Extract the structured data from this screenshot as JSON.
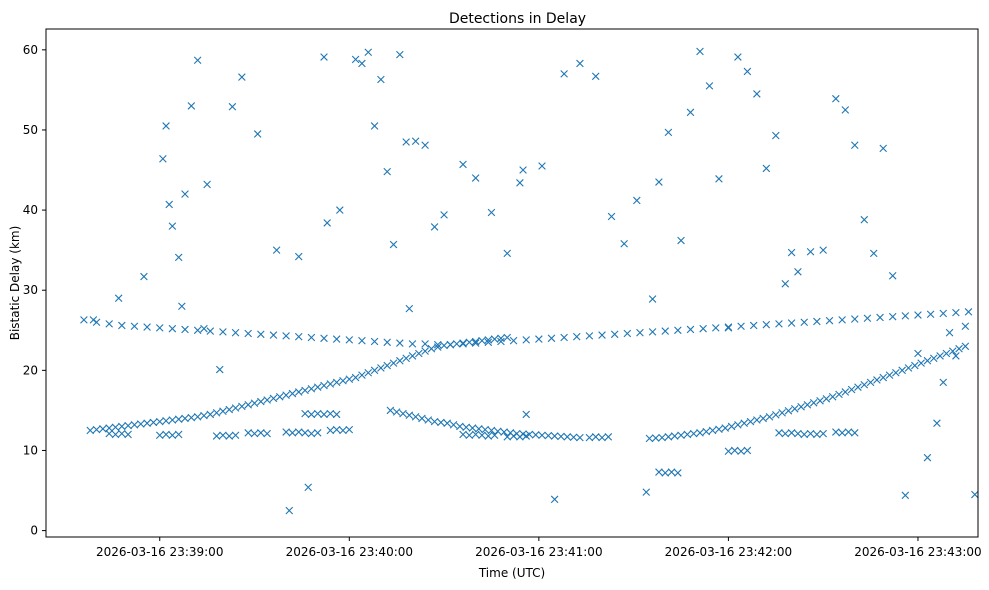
{
  "chart_data": {
    "type": "scatter",
    "title": "Detections in Delay",
    "xlabel": "Time (UTC)",
    "ylabel": "Bistatic Delay (km)",
    "marker": "x",
    "color": "#1f77b4",
    "x_unit": "seconds after 2026-03-16 23:38:00 UTC",
    "xlim": [
      24,
      319
    ],
    "ylim": [
      -0.8,
      62.6
    ],
    "xticks": [
      {
        "value": 60,
        "label": "2026-03-16 23:39:00"
      },
      {
        "value": 120,
        "label": "2026-03-16 23:40:00"
      },
      {
        "value": 180,
        "label": "2026-03-16 23:41:00"
      },
      {
        "value": 240,
        "label": "2026-03-16 23:42:00"
      },
      {
        "value": 300,
        "label": "2026-03-16 23:43:00"
      }
    ],
    "yticks": [
      {
        "value": 0,
        "label": "0"
      },
      {
        "value": 10,
        "label": "10"
      },
      {
        "value": 20,
        "label": "20"
      },
      {
        "value": 30,
        "label": "30"
      },
      {
        "value": 40,
        "label": "40"
      },
      {
        "value": 50,
        "label": "50"
      },
      {
        "value": 60,
        "label": "60"
      }
    ],
    "series": [
      {
        "name": "track-rising-1",
        "x": [
          38,
          40,
          42,
          44,
          46,
          48,
          50,
          52,
          54,
          56,
          58,
          60,
          62,
          64,
          66,
          68,
          70,
          72,
          74,
          76,
          78,
          80,
          82,
          84,
          86,
          88,
          90,
          92,
          94,
          96,
          98,
          100,
          102,
          104,
          106,
          108,
          110,
          112,
          114,
          116,
          118,
          120,
          122,
          124,
          126,
          128,
          130,
          132,
          134,
          136,
          138,
          140,
          142,
          144,
          146,
          148,
          150,
          152,
          154,
          156,
          158,
          160,
          162,
          164,
          166,
          168,
          170
        ],
        "y": [
          12.5,
          12.6,
          12.7,
          12.8,
          12.9,
          13.0,
          13.1,
          13.2,
          13.3,
          13.4,
          13.5,
          13.6,
          13.7,
          13.8,
          13.9,
          14.0,
          14.1,
          14.2,
          14.35,
          14.5,
          14.7,
          14.9,
          15.1,
          15.3,
          15.5,
          15.7,
          15.9,
          16.1,
          16.3,
          16.5,
          16.7,
          16.9,
          17.1,
          17.3,
          17.5,
          17.7,
          17.9,
          18.1,
          18.3,
          18.5,
          18.7,
          18.9,
          19.1,
          19.4,
          19.7,
          20.0,
          20.3,
          20.6,
          20.9,
          21.2,
          21.5,
          21.8,
          22.1,
          22.4,
          22.7,
          22.9,
          23.1,
          23.2,
          23.3,
          23.4,
          23.5,
          23.6,
          23.7,
          23.8,
          23.9,
          24.0,
          24.1
        ]
      },
      {
        "name": "track-descending",
        "x": [
          133,
          135,
          137,
          139,
          141,
          143,
          145,
          147,
          149,
          151,
          153,
          155,
          157,
          159,
          161,
          163,
          165,
          167,
          169,
          171,
          173,
          175,
          177,
          179,
          181,
          183,
          185,
          187,
          189,
          191,
          193
        ],
        "y": [
          15.0,
          14.8,
          14.6,
          14.4,
          14.2,
          14.0,
          13.8,
          13.6,
          13.5,
          13.4,
          13.2,
          13.0,
          12.9,
          12.8,
          12.7,
          12.6,
          12.5,
          12.4,
          12.3,
          12.2,
          12.1,
          12.05,
          12.0,
          11.95,
          11.9,
          11.85,
          11.8,
          11.75,
          11.7,
          11.65,
          11.6
        ]
      },
      {
        "name": "track-rising-2",
        "x": [
          215,
          217,
          219,
          221,
          223,
          225,
          227,
          229,
          231,
          233,
          235,
          237,
          239,
          241,
          243,
          245,
          247,
          249,
          251,
          253,
          255,
          257,
          259,
          261,
          263,
          265,
          267,
          269,
          271,
          273,
          275,
          277,
          279,
          281,
          283,
          285,
          287,
          289,
          291,
          293,
          295,
          297,
          299,
          301,
          303,
          305,
          307,
          309,
          311,
          313,
          315
        ],
        "y": [
          11.5,
          11.55,
          11.6,
          11.7,
          11.8,
          11.9,
          12.0,
          12.1,
          12.2,
          12.35,
          12.5,
          12.65,
          12.8,
          13.0,
          13.2,
          13.4,
          13.6,
          13.8,
          14.0,
          14.2,
          14.45,
          14.7,
          14.95,
          15.2,
          15.45,
          15.7,
          15.95,
          16.2,
          16.45,
          16.7,
          17.0,
          17.3,
          17.6,
          17.9,
          18.2,
          18.5,
          18.8,
          19.1,
          19.4,
          19.7,
          20.0,
          20.3,
          20.6,
          20.9,
          21.2,
          21.5,
          21.8,
          22.1,
          22.4,
          22.7,
          23.0
        ]
      },
      {
        "name": "band-26km",
        "x": [
          36,
          40,
          44,
          48,
          52,
          56,
          60,
          64,
          68,
          72,
          76,
          80,
          84,
          88,
          92,
          96,
          100,
          104,
          108,
          112,
          116,
          120,
          124,
          128,
          132,
          136,
          140,
          144,
          148,
          152,
          156,
          160,
          164,
          168,
          172,
          176,
          180,
          184,
          188,
          192,
          196,
          200,
          204,
          208,
          212,
          216,
          220,
          224,
          228,
          232,
          236,
          240,
          244,
          248,
          252,
          256,
          260,
          264,
          268,
          272,
          276,
          280,
          284,
          288,
          292,
          296,
          300,
          304,
          308,
          312,
          316
        ],
        "y": [
          26.3,
          26.0,
          25.8,
          25.6,
          25.5,
          25.4,
          25.3,
          25.2,
          25.1,
          25.0,
          24.9,
          24.8,
          24.7,
          24.6,
          24.5,
          24.4,
          24.3,
          24.2,
          24.1,
          24.0,
          23.9,
          23.8,
          23.7,
          23.6,
          23.5,
          23.4,
          23.3,
          23.3,
          23.2,
          23.2,
          23.3,
          23.4,
          23.5,
          23.6,
          23.7,
          23.8,
          23.9,
          24.0,
          24.1,
          24.2,
          24.3,
          24.4,
          24.5,
          24.6,
          24.7,
          24.8,
          24.9,
          25.0,
          25.1,
          25.2,
          25.3,
          25.4,
          25.5,
          25.6,
          25.7,
          25.8,
          25.9,
          26.0,
          26.1,
          26.2,
          26.3,
          26.4,
          26.5,
          26.6,
          26.7,
          26.8,
          26.9,
          27.0,
          27.1,
          27.2,
          27.3
        ]
      },
      {
        "name": "band-12km",
        "x": [
          44,
          46,
          48,
          50,
          60,
          62,
          64,
          66,
          78,
          80,
          82,
          84,
          88,
          90,
          92,
          94,
          100,
          102,
          104,
          106,
          108,
          110,
          114,
          116,
          118,
          120,
          156,
          158,
          160,
          162,
          164,
          166,
          170,
          172,
          174,
          176,
          196,
          198,
          200,
          202,
          218,
          220,
          222,
          224,
          240,
          242,
          244,
          246,
          256,
          258,
          260,
          262,
          264,
          266,
          268,
          270,
          274,
          276,
          278,
          280
        ],
        "y": [
          12.1,
          12.0,
          12.1,
          12.0,
          11.9,
          12.0,
          11.9,
          12.0,
          11.8,
          11.9,
          11.8,
          11.9,
          12.2,
          12.1,
          12.2,
          12.1,
          12.3,
          12.2,
          12.3,
          12.2,
          12.1,
          12.2,
          12.5,
          12.6,
          12.5,
          12.6,
          12.0,
          11.9,
          12.0,
          11.9,
          11.8,
          11.9,
          11.7,
          11.8,
          11.7,
          11.8,
          11.6,
          11.7,
          11.6,
          11.7,
          7.3,
          7.2,
          7.3,
          7.2,
          9.9,
          10.0,
          9.9,
          10.0,
          12.2,
          12.1,
          12.2,
          12.1,
          12.0,
          12.1,
          12.0,
          12.1,
          12.3,
          12.2,
          12.3,
          12.2
        ]
      },
      {
        "name": "band-14.5km",
        "x": [
          106,
          108,
          110,
          112,
          114,
          116
        ],
        "y": [
          14.6,
          14.5,
          14.6,
          14.5,
          14.6,
          14.5
        ]
      },
      {
        "name": "scattered-detections",
        "x": [
          39,
          47,
          55,
          61,
          62,
          63,
          64,
          66,
          67,
          68,
          70,
          72,
          74,
          75,
          79,
          83,
          86,
          91,
          97,
          101,
          104,
          107,
          112,
          113,
          117,
          122,
          124,
          126,
          128,
          130,
          132,
          134,
          136,
          138,
          139,
          141,
          144,
          147,
          150,
          156,
          160,
          165,
          170,
          174,
          175,
          176,
          181,
          185,
          188,
          193,
          198,
          203,
          207,
          211,
          214,
          216,
          218,
          221,
          225,
          228,
          231,
          234,
          237,
          240,
          243,
          246,
          249,
          252,
          255,
          258,
          260,
          262,
          266,
          270,
          274,
          277,
          280,
          283,
          286,
          289,
          292,
          296,
          300,
          303,
          306,
          308,
          310,
          312,
          315,
          318
        ],
        "y": [
          26.3,
          29.0,
          31.7,
          46.4,
          50.5,
          40.7,
          38.0,
          34.1,
          28.0,
          42.0,
          53.0,
          58.7,
          25.2,
          43.2,
          20.1,
          52.9,
          56.6,
          49.5,
          35.0,
          2.5,
          34.2,
          5.4,
          59.1,
          38.4,
          40.0,
          58.8,
          58.3,
          59.7,
          50.5,
          56.3,
          44.8,
          35.7,
          59.4,
          48.5,
          27.7,
          48.6,
          48.1,
          37.9,
          39.4,
          45.7,
          44.0,
          39.7,
          34.6,
          43.4,
          45.0,
          14.5,
          45.5,
          3.9,
          57.0,
          58.3,
          56.7,
          39.2,
          35.8,
          41.2,
          4.8,
          28.9,
          43.5,
          49.7,
          36.2,
          52.2,
          59.8,
          55.5,
          43.9,
          25.3,
          59.1,
          57.3,
          54.5,
          45.2,
          49.3,
          30.8,
          34.7,
          32.3,
          34.8,
          35.0,
          53.9,
          52.5,
          48.1,
          38.8,
          34.6,
          47.7,
          31.8,
          4.4,
          22.1,
          9.1,
          13.4,
          18.5,
          24.7,
          21.8,
          25.5,
          4.5
        ]
      }
    ]
  }
}
